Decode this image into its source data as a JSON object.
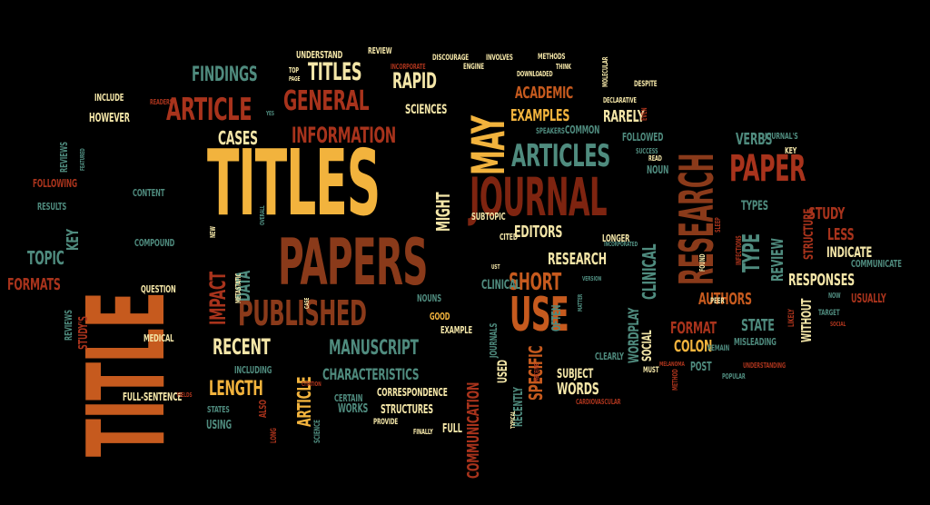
{
  "palette": {
    "background": "#000000",
    "orange": "#C65A1E",
    "yellow": "#F2B33D",
    "cream": "#F4E6A8",
    "teal": "#4F8B7E",
    "red": "#A8331C",
    "darkred": "#7E2410",
    "brown": "#8A3A1A"
  },
  "words": [
    {
      "text": "TITLE",
      "color": "orange"
    },
    {
      "text": "TITLES",
      "color": "yellow"
    },
    {
      "text": "PAPERS",
      "color": "brown"
    },
    {
      "text": "JOURNAL",
      "color": "darkred"
    },
    {
      "text": "RESEARCH",
      "color": "brown"
    },
    {
      "text": "MAY",
      "color": "yellow"
    },
    {
      "text": "USE",
      "color": "orange"
    },
    {
      "text": "PAPER",
      "color": "red"
    },
    {
      "text": "PUBLISHED",
      "color": "brown"
    },
    {
      "text": "ARTICLES",
      "color": "teal"
    },
    {
      "text": "ARTICLE",
      "color": "red"
    },
    {
      "text": "GENERAL",
      "color": "red"
    },
    {
      "text": "INFORMATION",
      "color": "red"
    },
    {
      "text": "TITLES",
      "color": "cream"
    },
    {
      "text": "RAPID",
      "color": "cream"
    },
    {
      "text": "FINDINGS",
      "color": "teal"
    },
    {
      "text": "CASES",
      "color": "cream"
    },
    {
      "text": "ACADEMIC",
      "color": "orange"
    },
    {
      "text": "EXAMPLES",
      "color": "yellow"
    },
    {
      "text": "RARELY",
      "color": "cream"
    },
    {
      "text": "SCIENCES",
      "color": "cream"
    },
    {
      "text": "MIGHT",
      "color": "cream"
    },
    {
      "text": "IMPACT",
      "color": "red"
    },
    {
      "text": "DATA",
      "color": "teal"
    },
    {
      "text": "TOPIC",
      "color": "teal"
    },
    {
      "text": "KEY",
      "color": "teal"
    },
    {
      "text": "FORMATS",
      "color": "red"
    },
    {
      "text": "RECENT",
      "color": "cream"
    },
    {
      "text": "LENGTH",
      "color": "yellow"
    },
    {
      "text": "MANUSCRIPT",
      "color": "teal"
    },
    {
      "text": "CHARACTERISTICS",
      "color": "teal"
    },
    {
      "text": "CORRESPONDENCE",
      "color": "cream"
    },
    {
      "text": "STRUCTURES",
      "color": "cream"
    },
    {
      "text": "ARTICLE",
      "color": "yellow"
    },
    {
      "text": "COMMUNICATION",
      "color": "red"
    },
    {
      "text": "SHORT",
      "color": "orange"
    },
    {
      "text": "SPECIFIC",
      "color": "orange"
    },
    {
      "text": "EDITORS",
      "color": "cream"
    },
    {
      "text": "RESEARCH",
      "color": "cream"
    },
    {
      "text": "CLINICAL",
      "color": "teal"
    },
    {
      "text": "CLINICAL",
      "color": "teal"
    },
    {
      "text": "WORDPLAY",
      "color": "teal"
    },
    {
      "text": "FORMAT",
      "color": "red"
    },
    {
      "text": "COLON",
      "color": "yellow"
    },
    {
      "text": "AUTHORS",
      "color": "orange"
    },
    {
      "text": "STATE",
      "color": "teal"
    },
    {
      "text": "TYPE",
      "color": "teal"
    },
    {
      "text": "REVIEW",
      "color": "teal"
    },
    {
      "text": "RESPONSES",
      "color": "cream"
    },
    {
      "text": "STUDY",
      "color": "red"
    },
    {
      "text": "LESS",
      "color": "red"
    },
    {
      "text": "INDICATE",
      "color": "cream"
    },
    {
      "text": "VERBS",
      "color": "teal"
    },
    {
      "text": "TYPES",
      "color": "teal"
    },
    {
      "text": "STRUCTURE",
      "color": "red"
    },
    {
      "text": "WITHOUT",
      "color": "cream"
    },
    {
      "text": "USUALLY",
      "color": "red"
    },
    {
      "text": "COMMUNICATE",
      "color": "teal"
    },
    {
      "text": "SUBJECT",
      "color": "cream"
    },
    {
      "text": "WORDS",
      "color": "cream"
    },
    {
      "text": "CLEARLY",
      "color": "teal"
    },
    {
      "text": "SOCIAL",
      "color": "cream"
    },
    {
      "text": "POST",
      "color": "teal"
    },
    {
      "text": "MISLEADING",
      "color": "teal"
    },
    {
      "text": "FOLLOWED",
      "color": "teal"
    },
    {
      "text": "COMMON",
      "color": "teal"
    },
    {
      "text": "NOUN",
      "color": "teal"
    },
    {
      "text": "LONGER",
      "color": "cream"
    },
    {
      "text": "SUBTOPIC",
      "color": "cream"
    },
    {
      "text": "CITED",
      "color": "cream"
    },
    {
      "text": "NOUNS",
      "color": "teal"
    },
    {
      "text": "GOOD",
      "color": "yellow"
    },
    {
      "text": "EXAMPLE",
      "color": "cream"
    },
    {
      "text": "OFTEN",
      "color": "teal"
    },
    {
      "text": "JOURNALS",
      "color": "teal"
    },
    {
      "text": "USED",
      "color": "cream"
    },
    {
      "text": "RECENTLY",
      "color": "teal"
    },
    {
      "text": "WORKS",
      "color": "teal"
    },
    {
      "text": "CERTAIN",
      "color": "teal"
    },
    {
      "text": "FULL",
      "color": "cream"
    },
    {
      "text": "INCLUDING",
      "color": "teal"
    },
    {
      "text": "STATES",
      "color": "teal"
    },
    {
      "text": "USING",
      "color": "teal"
    },
    {
      "text": "ALSO",
      "color": "red"
    },
    {
      "text": "FULL-SENTENCE",
      "color": "cream"
    },
    {
      "text": "MEDICAL",
      "color": "cream"
    },
    {
      "text": "STUDY'S",
      "color": "red"
    },
    {
      "text": "REVIEWS",
      "color": "teal"
    },
    {
      "text": "QUESTION",
      "color": "cream"
    },
    {
      "text": "COMPOUND",
      "color": "teal"
    },
    {
      "text": "CONTENT",
      "color": "teal"
    },
    {
      "text": "RESULTS",
      "color": "teal"
    },
    {
      "text": "FOLLOWING",
      "color": "red"
    },
    {
      "text": "REVIEWS",
      "color": "teal"
    },
    {
      "text": "HOWEVER",
      "color": "cream"
    },
    {
      "text": "INCLUDE",
      "color": "cream"
    },
    {
      "text": "UNDERSTAND",
      "color": "cream"
    },
    {
      "text": "REVIEW",
      "color": "cream"
    },
    {
      "text": "DISCOURAGE",
      "color": "cream"
    },
    {
      "text": "INVOLVES",
      "color": "cream"
    },
    {
      "text": "METHODS",
      "color": "cream"
    },
    {
      "text": "JOURNAL'S",
      "color": "teal"
    },
    {
      "text": "KEY",
      "color": "cream"
    },
    {
      "text": "DESPITE",
      "color": "cream"
    },
    {
      "text": "DECLARATIVE",
      "color": "cream"
    },
    {
      "text": "SPEAKERS",
      "color": "teal"
    },
    {
      "text": "PEER",
      "color": "cream"
    },
    {
      "text": "TARGET",
      "color": "teal"
    },
    {
      "text": "MUST",
      "color": "cream"
    },
    {
      "text": "POPULAR",
      "color": "teal"
    },
    {
      "text": "PROVIDE",
      "color": "cream"
    },
    {
      "text": "FINALLY",
      "color": "cream"
    },
    {
      "text": "SCIENCE",
      "color": "teal"
    },
    {
      "text": "LONG",
      "color": "red"
    },
    {
      "text": "NEW",
      "color": "cream"
    },
    {
      "text": "METASTATIC",
      "color": "cream"
    },
    {
      "text": "FEATURED",
      "color": "teal"
    },
    {
      "text": "READERS",
      "color": "red"
    },
    {
      "text": "TOP",
      "color": "cream"
    },
    {
      "text": "INCORPORATE",
      "color": "red"
    },
    {
      "text": "ENGINE",
      "color": "cream"
    },
    {
      "text": "THINK",
      "color": "cream"
    },
    {
      "text": "DOWNLOADED",
      "color": "cream"
    },
    {
      "text": "MOLECULAR",
      "color": "cream"
    },
    {
      "text": "EVEN",
      "color": "red"
    },
    {
      "text": "SUCCESS",
      "color": "teal"
    },
    {
      "text": "READ",
      "color": "cream"
    },
    {
      "text": "SLEEP",
      "color": "red"
    },
    {
      "text": "INFECTIONS",
      "color": "red"
    },
    {
      "text": "FOUND",
      "color": "cream"
    },
    {
      "text": "NOW",
      "color": "teal"
    },
    {
      "text": "REMAIN",
      "color": "teal"
    },
    {
      "text": "UNDERSTANDING",
      "color": "red"
    },
    {
      "text": "MELANOMA",
      "color": "red"
    },
    {
      "text": "METHOD",
      "color": "red"
    },
    {
      "text": "CARDIOVASCULAR",
      "color": "red"
    },
    {
      "text": "INCORPORATED",
      "color": "teal"
    },
    {
      "text": "VERSION",
      "color": "teal"
    },
    {
      "text": "MATTER",
      "color": "teal"
    },
    {
      "text": "TYPICAL",
      "color": "cream"
    },
    {
      "text": "RECEIVE",
      "color": "red"
    },
    {
      "text": "UST",
      "color": "cream"
    },
    {
      "text": "CITATION",
      "color": "red"
    },
    {
      "text": "CASE",
      "color": "cream"
    },
    {
      "text": "FIELDS",
      "color": "red"
    },
    {
      "text": "OVERALL",
      "color": "teal"
    },
    {
      "text": "PAGE",
      "color": "cream"
    },
    {
      "text": "YES",
      "color": "teal"
    },
    {
      "text": "LIKELY",
      "color": "red"
    },
    {
      "text": "SOCIAL",
      "color": "red"
    }
  ]
}
